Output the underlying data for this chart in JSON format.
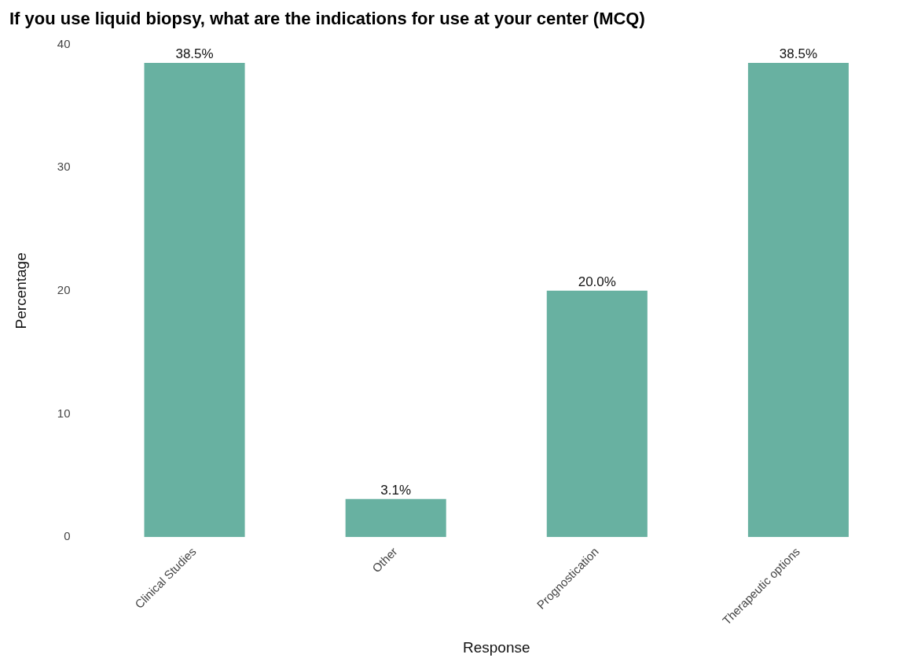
{
  "chart_data": {
    "type": "bar",
    "title": "If you use liquid biopsy, what are the indications for use at your center (MCQ)",
    "xlabel": "Response",
    "ylabel": "Percentage",
    "categories": [
      "Clinical Studies",
      "Other",
      "Prognostication",
      "Therapeutic options"
    ],
    "values": [
      38.5,
      3.1,
      20,
      38.5
    ],
    "value_labels": [
      "38.5%",
      "3.1%",
      "20.0%",
      "38.5%"
    ],
    "color": "#68b1a1",
    "ylim": [
      0,
      40
    ],
    "yticks": [
      0,
      10,
      20,
      30,
      40
    ],
    "grid": false,
    "legend": false
  }
}
